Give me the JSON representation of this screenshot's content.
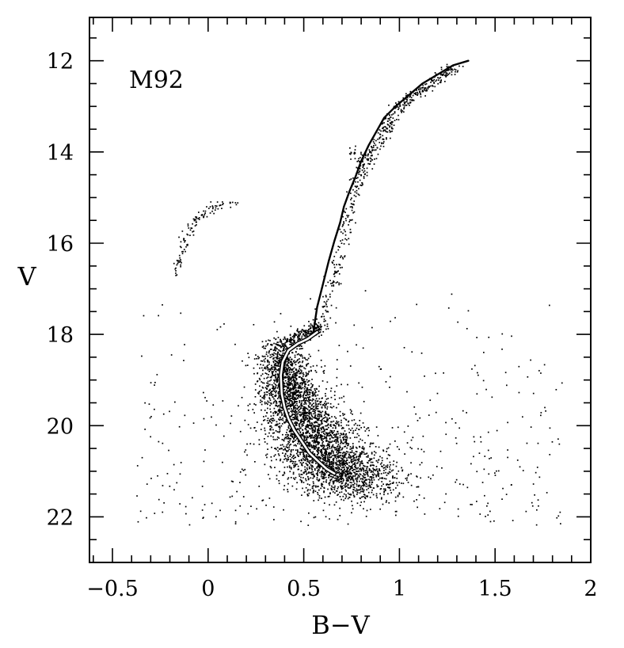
{
  "chart_data": {
    "type": "scatter",
    "title": "",
    "annotation": "M92",
    "xlabel": "B−V",
    "ylabel": "V",
    "xlim": [
      -0.62,
      2.0
    ],
    "ylim": [
      23.0,
      11.05
    ],
    "y_inverted": true,
    "x_major_ticks": [
      -0.5,
      0,
      0.5,
      1,
      1.5,
      2
    ],
    "x_tick_labels": [
      "−0.5",
      "0",
      "0.5",
      "1",
      "1.5",
      "2"
    ],
    "x_minor_step": 0.1,
    "y_major_ticks": [
      12,
      14,
      16,
      18,
      20,
      22
    ],
    "y_tick_labels": [
      "12",
      "14",
      "16",
      "18",
      "20",
      "22"
    ],
    "y_minor_step": 0.5,
    "grid": false,
    "legend": "none",
    "colors": {
      "points": "#000000",
      "rgb_fiducial": "#000000",
      "ms_fiducial": "#ffffff"
    },
    "series": [
      {
        "role": "fiducial-upper",
        "color": "#000000",
        "x": [
          0.55,
          0.57,
          0.6,
          0.63,
          0.66,
          0.69,
          0.71,
          0.74,
          0.77,
          0.8,
          0.84,
          0.88,
          0.92,
          0.98,
          1.05,
          1.12,
          1.2,
          1.28,
          1.36
        ],
        "y": [
          17.95,
          17.4,
          16.9,
          16.4,
          15.95,
          15.55,
          15.2,
          14.85,
          14.55,
          14.2,
          13.85,
          13.55,
          13.25,
          13.0,
          12.75,
          12.5,
          12.3,
          12.1,
          12.0
        ]
      },
      {
        "role": "fiducial-main-sequence",
        "color": "#ffffff",
        "x": [
          0.57,
          0.52,
          0.47,
          0.42,
          0.39,
          0.38,
          0.385,
          0.4,
          0.42,
          0.45,
          0.49,
          0.53,
          0.58,
          0.62,
          0.66
        ],
        "y": [
          17.95,
          18.1,
          18.2,
          18.35,
          18.6,
          18.9,
          19.3,
          19.6,
          19.85,
          20.1,
          20.35,
          20.6,
          20.8,
          20.95,
          21.05
        ]
      }
    ],
    "point_groups": [
      {
        "name": "",
        "region": "main-sequence",
        "n": 3600,
        "x_ref": [
          0.37,
          0.45,
          0.6,
          0.78
        ],
        "y_ref": [
          18.4,
          19.5,
          20.6,
          21.3
        ],
        "x_spread": 0.06,
        "y_spread": 0.25
      },
      {
        "name": "",
        "region": "subgiant-branch",
        "n": 260,
        "x_ref": [
          0.37,
          0.5,
          0.6
        ],
        "y_ref": [
          18.3,
          18.0,
          17.8
        ],
        "x_spread": 0.025,
        "y_spread": 0.08
      },
      {
        "name": "",
        "region": "red-giant-branch",
        "n": 520,
        "x_ref": [
          0.6,
          0.8,
          1.0,
          1.3
        ],
        "y_ref": [
          17.6,
          14.4,
          13.0,
          12.1
        ],
        "x_spread": 0.02,
        "y_spread": 0.05
      },
      {
        "name": "",
        "region": "horizontal-branch",
        "n": 110,
        "x_ref": [
          -0.17,
          -0.12,
          -0.05,
          0.05,
          0.15
        ],
        "y_ref": [
          16.7,
          15.9,
          15.4,
          15.2,
          15.05
        ],
        "x_spread": 0.015,
        "y_spread": 0.06
      },
      {
        "name": "",
        "region": "asymptotic-giant-branch",
        "n": 30,
        "x_ref": [
          0.74,
          0.8,
          0.86
        ],
        "y_ref": [
          13.9,
          14.2,
          14.6
        ],
        "x_spread": 0.02,
        "y_spread": 0.05
      },
      {
        "name": "",
        "region": "field-scatter",
        "n": 420,
        "x_range": [
          -0.38,
          1.85
        ],
        "y_range": [
          17.0,
          22.2
        ]
      }
    ]
  }
}
